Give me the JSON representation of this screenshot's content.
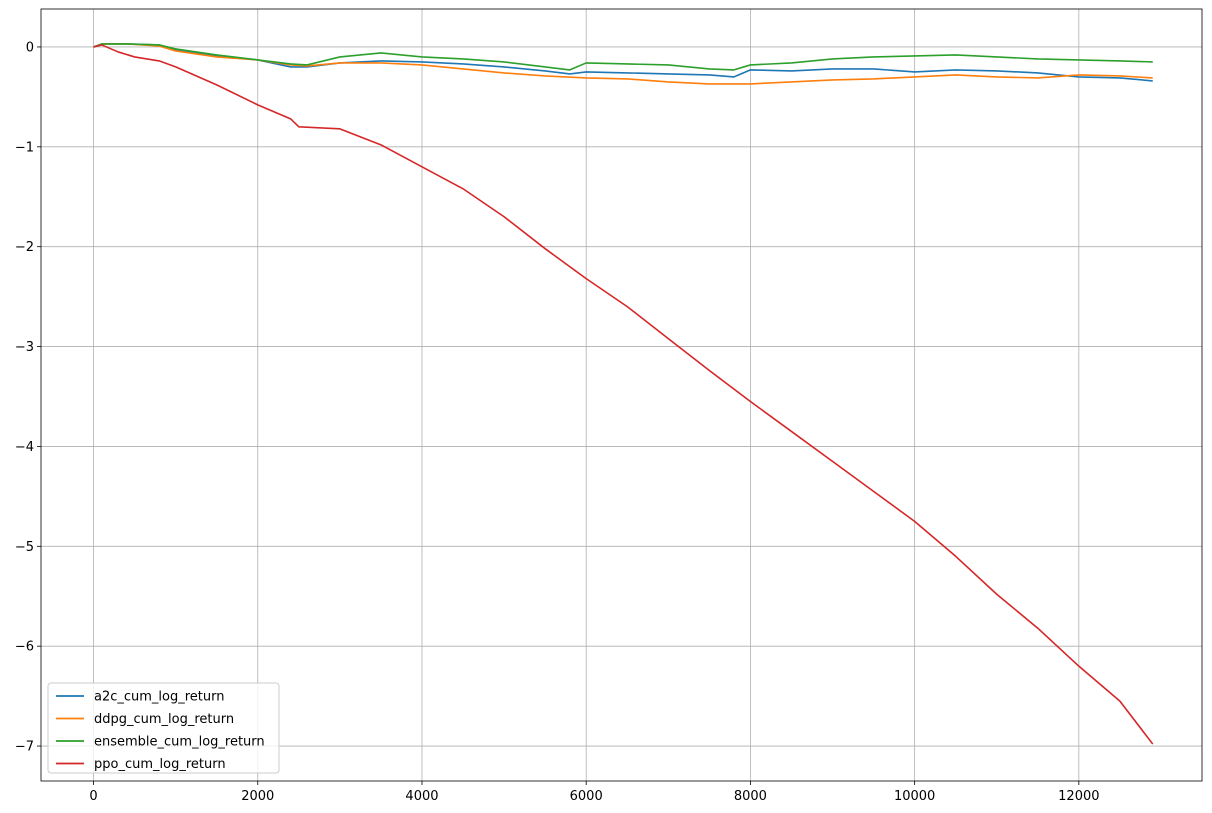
{
  "chart_data": {
    "type": "line",
    "title": "",
    "xlabel": "",
    "ylabel": "",
    "xlim": [
      -640,
      13500
    ],
    "ylim": [
      -7.35,
      0.38
    ],
    "xticks": [
      0,
      2000,
      4000,
      6000,
      8000,
      10000,
      12000
    ],
    "yticks": [
      0,
      -1,
      -2,
      -3,
      -4,
      -5,
      -6,
      -7
    ],
    "xtick_labels": [
      "0",
      "2000",
      "4000",
      "6000",
      "8000",
      "10000",
      "12000"
    ],
    "ytick_labels": [
      "0",
      "−1",
      "−2",
      "−3",
      "−4",
      "−5",
      "−6",
      "−7"
    ],
    "grid": true,
    "legend_position": "lower-left",
    "series": [
      {
        "name": "a2c_cum_log_return",
        "color": "#1f77b4",
        "points": [
          [
            0,
            0
          ],
          [
            100,
            0.03
          ],
          [
            400,
            0.03
          ],
          [
            800,
            0.02
          ],
          [
            1000,
            -0.03
          ],
          [
            1500,
            -0.09
          ],
          [
            2000,
            -0.13
          ],
          [
            2400,
            -0.2
          ],
          [
            2600,
            -0.2
          ],
          [
            3000,
            -0.16
          ],
          [
            3500,
            -0.14
          ],
          [
            4000,
            -0.15
          ],
          [
            4500,
            -0.17
          ],
          [
            5000,
            -0.2
          ],
          [
            5500,
            -0.24
          ],
          [
            5800,
            -0.27
          ],
          [
            6000,
            -0.25
          ],
          [
            6500,
            -0.26
          ],
          [
            7000,
            -0.27
          ],
          [
            7500,
            -0.28
          ],
          [
            7800,
            -0.3
          ],
          [
            8000,
            -0.23
          ],
          [
            8500,
            -0.24
          ],
          [
            9000,
            -0.22
          ],
          [
            9500,
            -0.22
          ],
          [
            10000,
            -0.25
          ],
          [
            10500,
            -0.23
          ],
          [
            11000,
            -0.24
          ],
          [
            11500,
            -0.26
          ],
          [
            12000,
            -0.3
          ],
          [
            12500,
            -0.31
          ],
          [
            12900,
            -0.34
          ]
        ]
      },
      {
        "name": "ddpg_cum_log_return",
        "color": "#ff7f0e",
        "points": [
          [
            0,
            0
          ],
          [
            100,
            0.03
          ],
          [
            400,
            0.03
          ],
          [
            800,
            0.01
          ],
          [
            1000,
            -0.04
          ],
          [
            1500,
            -0.1
          ],
          [
            2000,
            -0.13
          ],
          [
            2400,
            -0.18
          ],
          [
            2600,
            -0.19
          ],
          [
            3000,
            -0.16
          ],
          [
            3500,
            -0.16
          ],
          [
            4000,
            -0.18
          ],
          [
            4500,
            -0.22
          ],
          [
            5000,
            -0.26
          ],
          [
            5500,
            -0.29
          ],
          [
            6000,
            -0.31
          ],
          [
            6500,
            -0.32
          ],
          [
            7000,
            -0.35
          ],
          [
            7500,
            -0.37
          ],
          [
            8000,
            -0.37
          ],
          [
            8500,
            -0.35
          ],
          [
            9000,
            -0.33
          ],
          [
            9500,
            -0.32
          ],
          [
            10000,
            -0.3
          ],
          [
            10500,
            -0.28
          ],
          [
            11000,
            -0.3
          ],
          [
            11500,
            -0.31
          ],
          [
            12000,
            -0.28
          ],
          [
            12500,
            -0.29
          ],
          [
            12900,
            -0.31
          ]
        ]
      },
      {
        "name": "ensemble_cum_log_return",
        "color": "#2ca02c",
        "points": [
          [
            0,
            0
          ],
          [
            100,
            0.03
          ],
          [
            400,
            0.03
          ],
          [
            800,
            0.02
          ],
          [
            1000,
            -0.02
          ],
          [
            1500,
            -0.08
          ],
          [
            2000,
            -0.13
          ],
          [
            2400,
            -0.17
          ],
          [
            2600,
            -0.18
          ],
          [
            3000,
            -0.1
          ],
          [
            3500,
            -0.06
          ],
          [
            4000,
            -0.1
          ],
          [
            4500,
            -0.12
          ],
          [
            5000,
            -0.15
          ],
          [
            5500,
            -0.2
          ],
          [
            5800,
            -0.23
          ],
          [
            6000,
            -0.16
          ],
          [
            6500,
            -0.17
          ],
          [
            7000,
            -0.18
          ],
          [
            7500,
            -0.22
          ],
          [
            7800,
            -0.23
          ],
          [
            8000,
            -0.18
          ],
          [
            8500,
            -0.16
          ],
          [
            9000,
            -0.12
          ],
          [
            9500,
            -0.1
          ],
          [
            10000,
            -0.09
          ],
          [
            10500,
            -0.08
          ],
          [
            11000,
            -0.1
          ],
          [
            11500,
            -0.12
          ],
          [
            12000,
            -0.13
          ],
          [
            12500,
            -0.14
          ],
          [
            12900,
            -0.15
          ]
        ]
      },
      {
        "name": "ppo_cum_log_return",
        "color": "#d62728",
        "points": [
          [
            0,
            0
          ],
          [
            100,
            0.02
          ],
          [
            300,
            -0.05
          ],
          [
            500,
            -0.1
          ],
          [
            800,
            -0.14
          ],
          [
            1000,
            -0.2
          ],
          [
            1500,
            -0.38
          ],
          [
            2000,
            -0.58
          ],
          [
            2400,
            -0.72
          ],
          [
            2500,
            -0.8
          ],
          [
            3000,
            -0.82
          ],
          [
            3500,
            -0.98
          ],
          [
            4000,
            -1.2
          ],
          [
            4500,
            -1.42
          ],
          [
            5000,
            -1.7
          ],
          [
            5500,
            -2.02
          ],
          [
            6000,
            -2.32
          ],
          [
            6500,
            -2.6
          ],
          [
            7000,
            -2.92
          ],
          [
            7500,
            -3.24
          ],
          [
            8000,
            -3.55
          ],
          [
            8500,
            -3.85
          ],
          [
            9000,
            -4.15
          ],
          [
            9500,
            -4.45
          ],
          [
            10000,
            -4.75
          ],
          [
            10500,
            -5.1
          ],
          [
            11000,
            -5.48
          ],
          [
            11500,
            -5.82
          ],
          [
            12000,
            -6.2
          ],
          [
            12500,
            -6.55
          ],
          [
            12900,
            -6.98
          ]
        ]
      }
    ]
  }
}
